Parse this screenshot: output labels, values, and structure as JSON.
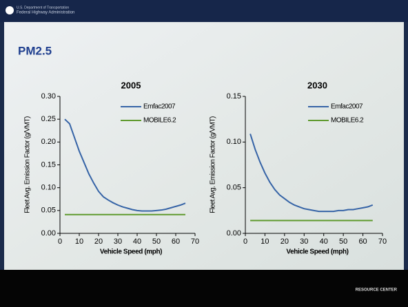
{
  "header": {
    "agency": "U.S. Department of Transportation",
    "administration": "Federal Highway Administration"
  },
  "slide_title": "PM2.5",
  "footer": "RESOURCE CENTER",
  "chart_data": [
    {
      "type": "line",
      "title": "2005",
      "xlabel": "Vehicle Speed (mph)",
      "ylabel": "Fleet Avg. Emission Factor (g/VMT)",
      "x": [
        2.5,
        5,
        7.5,
        10,
        12.5,
        15,
        17.5,
        20,
        22.5,
        25,
        27.5,
        30,
        32.5,
        35,
        37.5,
        40,
        42.5,
        45,
        47.5,
        50,
        52.5,
        55,
        57.5,
        60,
        62.5,
        65
      ],
      "series": [
        {
          "name": "Emfac2007",
          "color": "#3563a6",
          "values": [
            0.25,
            0.24,
            0.21,
            0.18,
            0.155,
            0.13,
            0.11,
            0.092,
            0.08,
            0.073,
            0.067,
            0.062,
            0.058,
            0.055,
            0.052,
            0.05,
            0.049,
            0.049,
            0.049,
            0.05,
            0.051,
            0.053,
            0.056,
            0.059,
            0.062,
            0.066
          ]
        },
        {
          "name": "MOBILE6.2",
          "color": "#5f9a2e",
          "values": [
            0.041,
            0.041,
            0.041,
            0.041,
            0.041,
            0.041,
            0.041,
            0.041,
            0.041,
            0.041,
            0.041,
            0.041,
            0.041,
            0.041,
            0.041,
            0.041,
            0.041,
            0.041,
            0.041,
            0.041,
            0.041,
            0.041,
            0.041,
            0.041,
            0.041,
            0.041
          ]
        }
      ],
      "xlim": [
        0,
        70
      ],
      "xticks": [
        0,
        10,
        20,
        30,
        40,
        50,
        60,
        70
      ],
      "ylim": [
        0,
        0.3
      ],
      "yticks": [
        {
          "value": 0,
          "label": "0.00"
        },
        {
          "value": 0.05,
          "label": "0.05"
        },
        {
          "value": 0.1,
          "label": "0.10"
        },
        {
          "value": 0.15,
          "label": "0.15"
        },
        {
          "value": 0.2,
          "label": "0.20"
        },
        {
          "value": 0.25,
          "label": "0.25"
        },
        {
          "value": 0.3,
          "label": "0.30"
        }
      ],
      "grid": false,
      "legend": "upper right"
    },
    {
      "type": "line",
      "title": "2030",
      "xlabel": "Vehicle Speed (mph)",
      "ylabel": "Fleet Avg. Emission Factor (g/VMT)",
      "x": [
        2.5,
        5,
        7.5,
        10,
        12.5,
        15,
        17.5,
        20,
        22.5,
        25,
        27.5,
        30,
        32.5,
        35,
        37.5,
        40,
        42.5,
        45,
        47.5,
        50,
        52.5,
        55,
        57.5,
        60,
        62.5,
        65
      ],
      "series": [
        {
          "name": "Emfac2007",
          "color": "#3563a6",
          "values": [
            0.109,
            0.092,
            0.078,
            0.066,
            0.056,
            0.048,
            0.042,
            0.038,
            0.034,
            0.031,
            0.029,
            0.027,
            0.026,
            0.025,
            0.024,
            0.024,
            0.024,
            0.024,
            0.025,
            0.025,
            0.026,
            0.026,
            0.027,
            0.028,
            0.029,
            0.031
          ]
        },
        {
          "name": "MOBILE6.2",
          "color": "#5f9a2e",
          "values": [
            0.014,
            0.014,
            0.014,
            0.014,
            0.014,
            0.014,
            0.014,
            0.014,
            0.014,
            0.014,
            0.014,
            0.014,
            0.014,
            0.014,
            0.014,
            0.014,
            0.014,
            0.014,
            0.014,
            0.014,
            0.014,
            0.014,
            0.014,
            0.014,
            0.014,
            0.014
          ]
        }
      ],
      "xlim": [
        0,
        70
      ],
      "xticks": [
        0,
        10,
        20,
        30,
        40,
        50,
        60,
        70
      ],
      "ylim": [
        0,
        0.15
      ],
      "yticks": [
        {
          "value": 0,
          "label": "0.00"
        },
        {
          "value": 0.05,
          "label": "0.05"
        },
        {
          "value": 0.1,
          "label": "0.10"
        },
        {
          "value": 0.15,
          "label": "0.15"
        }
      ],
      "grid": false,
      "legend": "upper right"
    }
  ]
}
